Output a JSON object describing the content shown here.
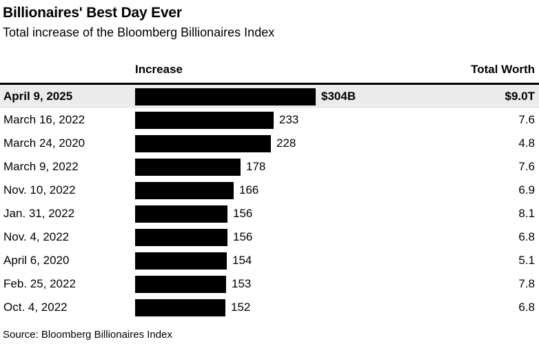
{
  "header": {
    "title": "Billionaires' Best Day Ever",
    "subtitle": "Total increase of the Bloomberg Billionaires Index"
  },
  "table": {
    "columns": {
      "increase": "Increase",
      "total_worth": "Total Worth"
    },
    "rows": [
      {
        "date": "April 9, 2025",
        "increase_label": "$304B",
        "increase_value": 304,
        "total_worth": "$9.0T",
        "highlight": true
      },
      {
        "date": "March 16, 2022",
        "increase_label": "233",
        "increase_value": 233,
        "total_worth": "7.6",
        "highlight": false
      },
      {
        "date": "March 24, 2020",
        "increase_label": "228",
        "increase_value": 228,
        "total_worth": "4.8",
        "highlight": false
      },
      {
        "date": "March 9, 2022",
        "increase_label": "178",
        "increase_value": 178,
        "total_worth": "7.6",
        "highlight": false
      },
      {
        "date": "Nov. 10, 2022",
        "increase_label": "166",
        "increase_value": 166,
        "total_worth": "6.9",
        "highlight": false
      },
      {
        "date": "Jan. 31, 2022",
        "increase_label": "156",
        "increase_value": 156,
        "total_worth": "8.1",
        "highlight": false
      },
      {
        "date": "Nov. 4, 2022",
        "increase_label": "156",
        "increase_value": 156,
        "total_worth": "6.8",
        "highlight": false
      },
      {
        "date": "April 6, 2020",
        "increase_label": "154",
        "increase_value": 154,
        "total_worth": "5.1",
        "highlight": false
      },
      {
        "date": "Feb. 25, 2022",
        "increase_label": "153",
        "increase_value": 153,
        "total_worth": "7.8",
        "highlight": false
      },
      {
        "date": "Oct. 4, 2022",
        "increase_label": "152",
        "increase_value": 152,
        "total_worth": "6.8",
        "highlight": false
      }
    ]
  },
  "footer": {
    "source": "Source: Bloomberg Billionaires Index"
  },
  "colors": {
    "bar": "#000000",
    "highlight_row_bg": "#ebebeb",
    "rule": "#000000",
    "text": "#000000",
    "background": "#ffffff"
  },
  "chart_data": {
    "type": "bar",
    "orientation": "horizontal",
    "title": "Billionaires' Best Day Ever",
    "subtitle": "Total increase of the Bloomberg Billionaires Index",
    "categories": [
      "April 9, 2025",
      "March 16, 2022",
      "March 24, 2020",
      "March 9, 2022",
      "Nov. 10, 2022",
      "Jan. 31, 2022",
      "Nov. 4, 2022",
      "April 6, 2020",
      "Feb. 25, 2022",
      "Oct. 4, 2022"
    ],
    "series": [
      {
        "name": "Increase ($B)",
        "values": [
          304,
          233,
          228,
          178,
          166,
          156,
          156,
          154,
          153,
          152
        ]
      },
      {
        "name": "Total Worth ($T)",
        "values": [
          9.0,
          7.6,
          4.8,
          7.6,
          6.9,
          8.1,
          6.8,
          5.1,
          7.8,
          6.8
        ]
      }
    ],
    "xlim": [
      0,
      304
    ],
    "grid": false,
    "legend_position": "none",
    "highlighted_category": "April 9, 2025",
    "source": "Source: Bloomberg Billionaires Index"
  }
}
